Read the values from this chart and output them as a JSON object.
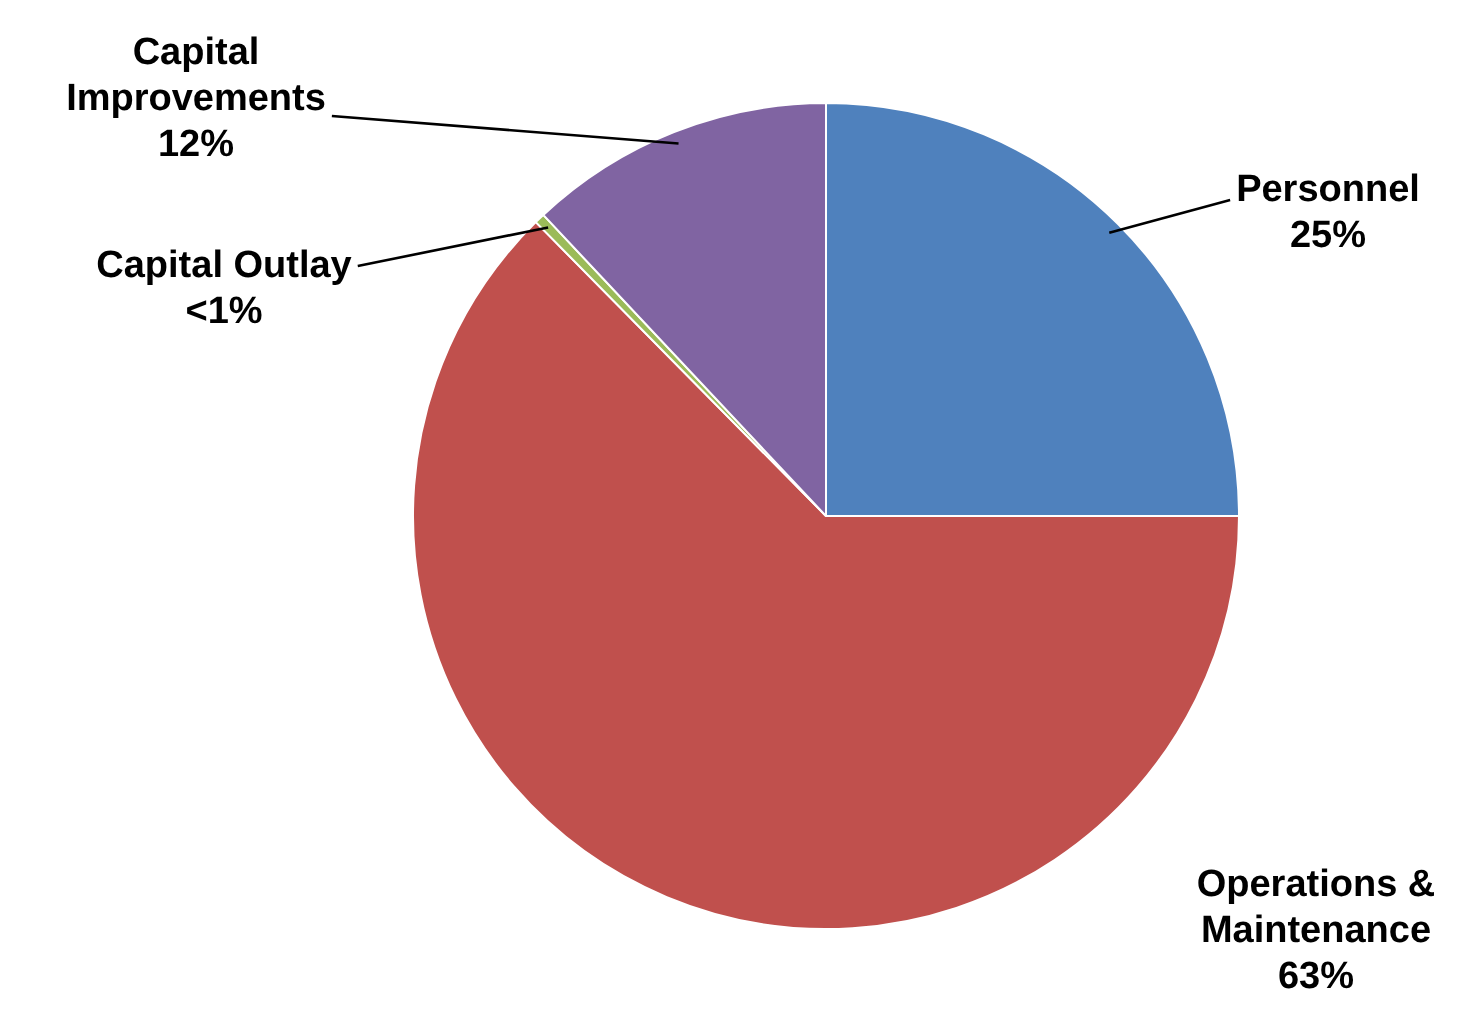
{
  "chart_data": {
    "type": "pie",
    "categories": [
      "Personnel",
      "Operations & Maintenance",
      "Capital Outlay",
      "Capital Improvements"
    ],
    "values": [
      25,
      62.6,
      0.4,
      12
    ],
    "colors": [
      "#4f81bd",
      "#c0504d",
      "#9bbb59",
      "#8064a2"
    ],
    "value_labels": [
      "25%",
      "63%",
      "<1%",
      "12%"
    ],
    "legend": false
  }
}
